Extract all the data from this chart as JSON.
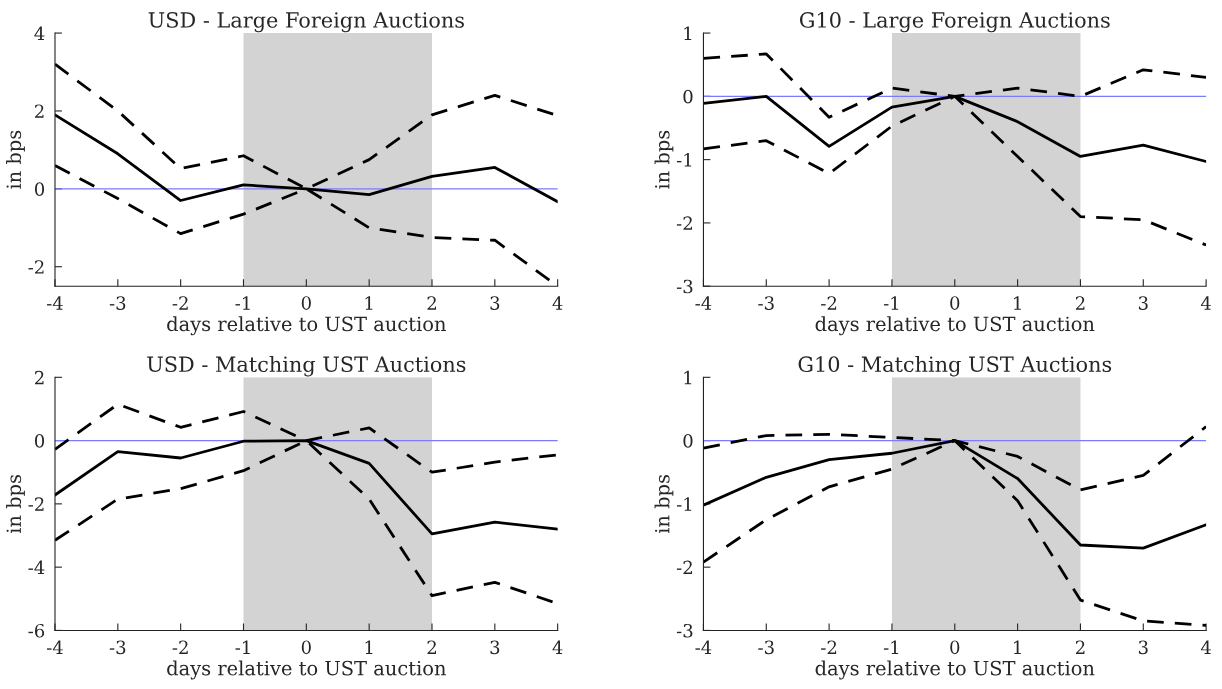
{
  "chart_data": [
    {
      "type": "line",
      "title": "USD - Large Foreign Auctions",
      "xlabel": "days relative to UST auction",
      "ylabel": "in bps",
      "x": [
        -4,
        -3,
        -2,
        -1,
        0,
        1,
        2,
        3,
        4
      ],
      "xlim": [
        -4,
        4
      ],
      "xticks": [
        -4,
        -3,
        -2,
        -1,
        0,
        1,
        2,
        3,
        4
      ],
      "ylim": [
        -2.5,
        4
      ],
      "yticks": [
        -2,
        0,
        2,
        4
      ],
      "series": [
        {
          "color": "#000000",
          "line_style": "solid",
          "values": [
            1.9,
            0.9,
            -0.3,
            0.1,
            0,
            -0.15,
            0.32,
            0.55,
            -0.33
          ]
        },
        {
          "color": "#000000",
          "line_style": "dashed",
          "values": [
            3.2,
            2.0,
            0.52,
            0.85,
            0,
            0.75,
            1.9,
            2.4,
            1.88
          ]
        },
        {
          "color": "#000000",
          "line_style": "dashed",
          "values": [
            0.6,
            -0.25,
            -1.15,
            -0.65,
            0,
            -1.0,
            -1.25,
            -1.32,
            -2.5
          ]
        }
      ],
      "ref_lines": [
        {
          "axis": "y",
          "value": 0,
          "color": "#7b7bff"
        }
      ],
      "bands": [
        {
          "axis": "x",
          "from": -1,
          "to": 2,
          "color": "#d3d3d3"
        }
      ]
    },
    {
      "type": "line",
      "title": "G10 - Large Foreign Auctions",
      "xlabel": "days relative to UST auction",
      "ylabel": "in bps",
      "x": [
        -4,
        -3,
        -2,
        -1,
        0,
        1,
        2,
        3,
        4
      ],
      "xlim": [
        -4,
        4
      ],
      "xticks": [
        -4,
        -3,
        -2,
        -1,
        0,
        1,
        2,
        3,
        4
      ],
      "ylim": [
        -3,
        1
      ],
      "yticks": [
        -3,
        -2,
        -1,
        0,
        1
      ],
      "series": [
        {
          "color": "#000000",
          "line_style": "solid",
          "values": [
            -0.11,
            0,
            -0.79,
            -0.17,
            0,
            -0.4,
            -0.95,
            -0.77,
            -1.03
          ]
        },
        {
          "color": "#000000",
          "line_style": "dashed",
          "values": [
            0.6,
            0.67,
            -0.33,
            0.13,
            0,
            0.13,
            0,
            0.42,
            0.3
          ]
        },
        {
          "color": "#000000",
          "line_style": "dashed",
          "values": [
            -0.83,
            -0.7,
            -1.22,
            -0.47,
            0,
            -0.95,
            -1.9,
            -1.95,
            -2.35
          ]
        }
      ],
      "ref_lines": [
        {
          "axis": "y",
          "value": 0,
          "color": "#7b7bff"
        }
      ],
      "bands": [
        {
          "axis": "x",
          "from": -1,
          "to": 2,
          "color": "#d3d3d3"
        }
      ]
    },
    {
      "type": "line",
      "title": "USD - Matching UST Auctions",
      "xlabel": "days relative to UST auction",
      "ylabel": "in bps",
      "x": [
        -4,
        -3,
        -2,
        -1,
        0,
        1,
        2,
        3,
        4
      ],
      "xlim": [
        -4,
        4
      ],
      "xticks": [
        -4,
        -3,
        -2,
        -1,
        0,
        1,
        2,
        3,
        4
      ],
      "ylim": [
        -6,
        2
      ],
      "yticks": [
        -6,
        -4,
        -2,
        0,
        2
      ],
      "series": [
        {
          "color": "#000000",
          "line_style": "solid",
          "values": [
            -1.72,
            -0.35,
            -0.55,
            -0.02,
            0,
            -0.72,
            -2.95,
            -2.58,
            -2.8
          ]
        },
        {
          "color": "#000000",
          "line_style": "dashed",
          "values": [
            -0.28,
            1.15,
            0.42,
            0.92,
            0,
            0.4,
            -1.0,
            -0.68,
            -0.45
          ]
        },
        {
          "color": "#000000",
          "line_style": "dashed",
          "values": [
            -3.15,
            -1.85,
            -1.52,
            -0.95,
            0,
            -1.85,
            -4.9,
            -4.48,
            -5.15
          ]
        }
      ],
      "ref_lines": [
        {
          "axis": "y",
          "value": 0,
          "color": "#7b7bff"
        }
      ],
      "bands": [
        {
          "axis": "x",
          "from": -1,
          "to": 2,
          "color": "#d3d3d3"
        }
      ]
    },
    {
      "type": "line",
      "title": "G10 - Matching UST Auctions",
      "xlabel": "days relative to UST auction",
      "ylabel": "in bps",
      "x": [
        -4,
        -3,
        -2,
        -1,
        0,
        1,
        2,
        3,
        4
      ],
      "xlim": [
        -4,
        4
      ],
      "xticks": [
        -4,
        -3,
        -2,
        -1,
        0,
        1,
        2,
        3,
        4
      ],
      "ylim": [
        -3,
        1
      ],
      "yticks": [
        -3,
        -2,
        -1,
        0,
        1
      ],
      "series": [
        {
          "color": "#000000",
          "line_style": "solid",
          "values": [
            -1.02,
            -0.58,
            -0.3,
            -0.2,
            0,
            -0.6,
            -1.65,
            -1.7,
            -1.33
          ]
        },
        {
          "color": "#000000",
          "line_style": "dashed",
          "values": [
            -0.12,
            0.08,
            0.1,
            0.05,
            0,
            -0.25,
            -0.78,
            -0.55,
            0.22
          ]
        },
        {
          "color": "#000000",
          "line_style": "dashed",
          "values": [
            -1.92,
            -1.25,
            -0.73,
            -0.45,
            0,
            -0.95,
            -2.52,
            -2.85,
            -2.92
          ]
        }
      ],
      "ref_lines": [
        {
          "axis": "y",
          "value": 0,
          "color": "#7b7bff"
        }
      ],
      "bands": [
        {
          "axis": "x",
          "from": -1,
          "to": 2,
          "color": "#d3d3d3"
        }
      ]
    }
  ]
}
